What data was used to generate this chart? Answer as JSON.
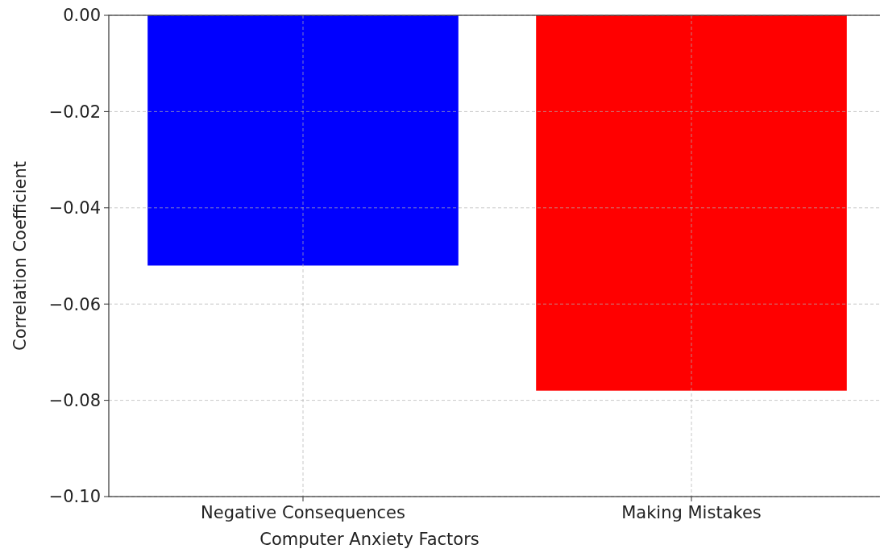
{
  "chart_data": {
    "type": "bar",
    "xlabel": "Computer Anxiety Factors",
    "ylabel": "Correlation Coefficient",
    "categories": [
      "Negative Consequences",
      "Making Mistakes"
    ],
    "values": [
      -0.052,
      -0.078
    ],
    "colors": [
      "#0000ff",
      "#ff0000"
    ],
    "ylim": [
      -0.1,
      0
    ],
    "yticks": [
      {
        "value": -0.1,
        "label": "−0.10"
      },
      {
        "value": -0.08,
        "label": "−0.08"
      },
      {
        "value": -0.06,
        "label": "−0.06"
      },
      {
        "value": -0.04,
        "label": "−0.04"
      },
      {
        "value": -0.02,
        "label": "−0.02"
      },
      {
        "value": 0,
        "label": "0.00"
      }
    ],
    "grid": true
  }
}
